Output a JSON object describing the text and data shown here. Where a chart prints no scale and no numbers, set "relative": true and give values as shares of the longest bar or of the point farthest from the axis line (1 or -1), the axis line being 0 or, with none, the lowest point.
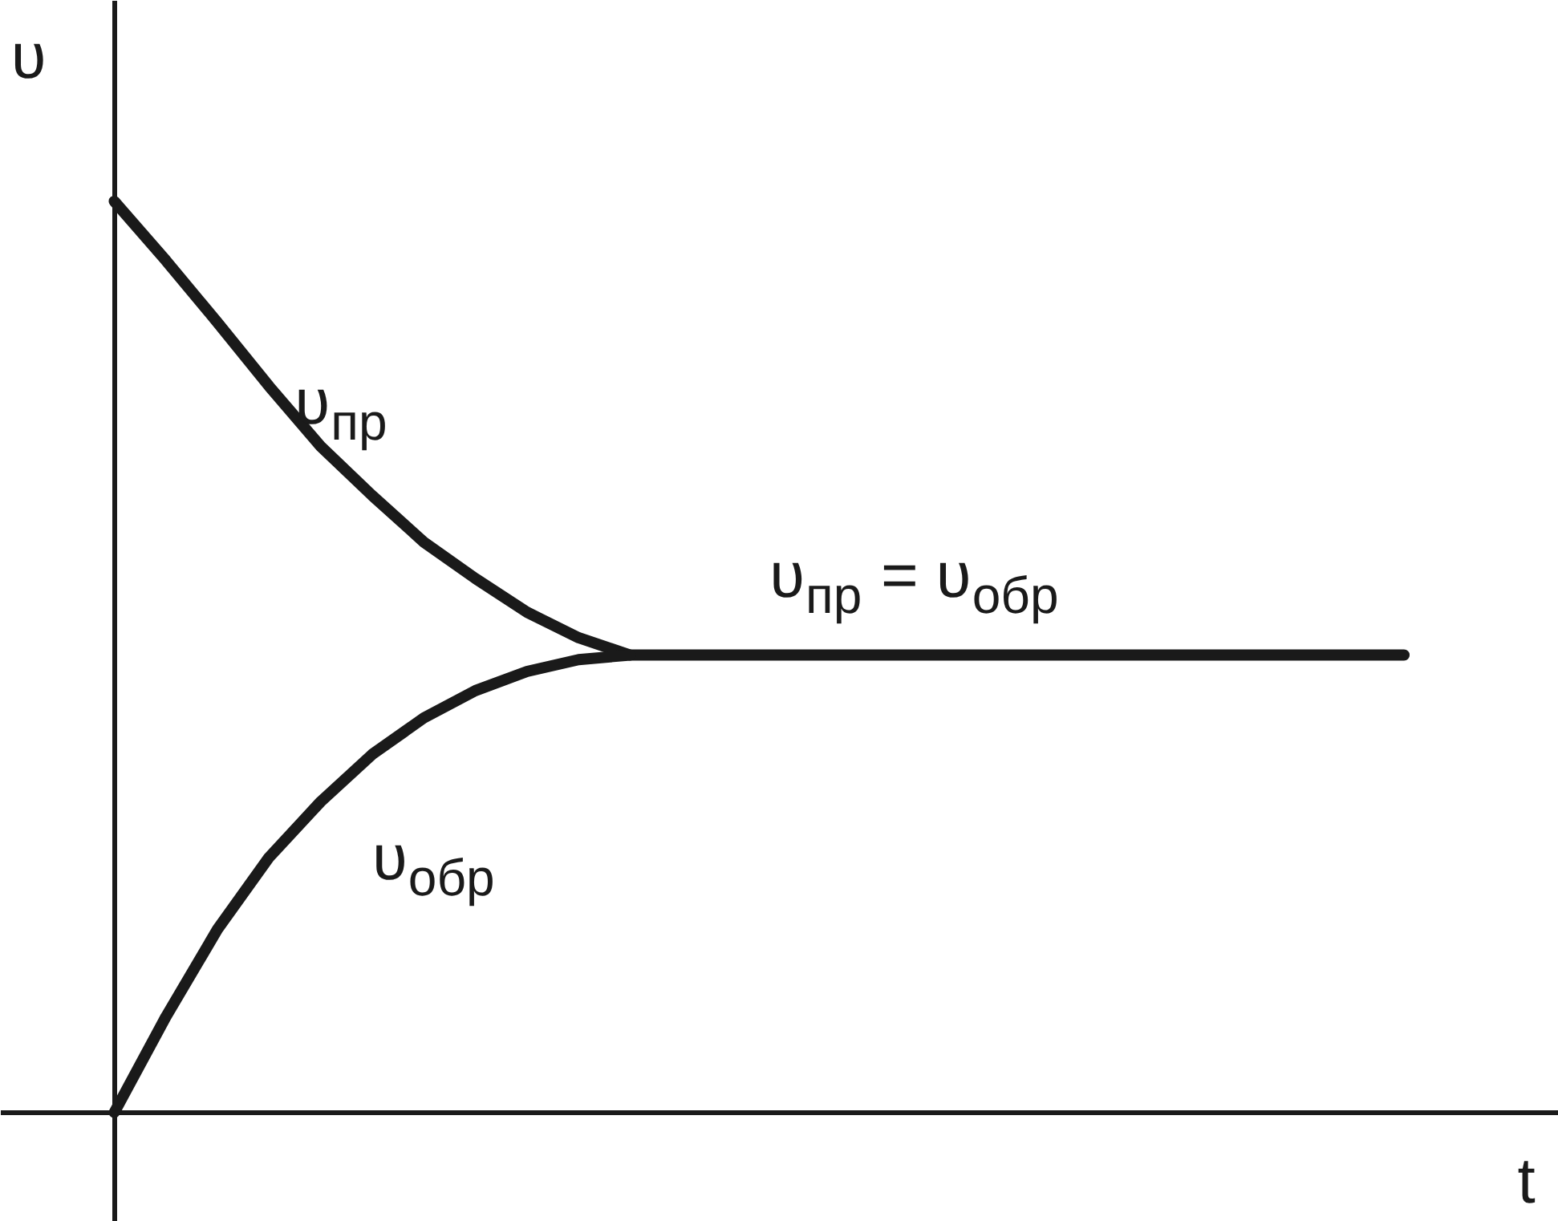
{
  "chart_data": {
    "type": "line",
    "relative": true,
    "xlabel": "t",
    "ylabel": "υ",
    "categories": [
      null,
      null,
      null,
      null,
      null,
      null,
      null,
      null,
      null,
      null,
      null,
      null,
      null,
      null,
      null,
      null,
      null,
      null,
      null,
      null,
      null,
      null,
      null,
      null,
      null,
      null
    ],
    "series": [
      {
        "name": "υ$_{пр}$",
        "color": "#1a1a1a",
        "values": [
          1.0,
          0.935,
          0.867,
          0.797,
          0.731,
          0.677,
          0.626,
          0.586,
          0.549,
          0.521,
          0.502,
          0.502,
          0.502,
          0.502,
          0.502,
          0.502,
          0.502,
          0.502,
          0.502,
          0.502,
          0.502,
          0.502,
          0.502,
          0.502,
          0.502,
          0.502
        ]
      },
      {
        "name": "υ$_{обр}$",
        "color": "#1a1a1a",
        "values": [
          0,
          0.105,
          0.201,
          0.28,
          0.341,
          0.393,
          0.433,
          0.463,
          0.484,
          0.497,
          0.502,
          null,
          null,
          null,
          null,
          null,
          null,
          null,
          null,
          null,
          null,
          null,
          null,
          null,
          null,
          null
        ]
      }
    ],
    "annotations": [
      "υ$_{пр}$ = υ$_{обр}$"
    ],
    "marker": "none",
    "line_style": "solid"
  }
}
